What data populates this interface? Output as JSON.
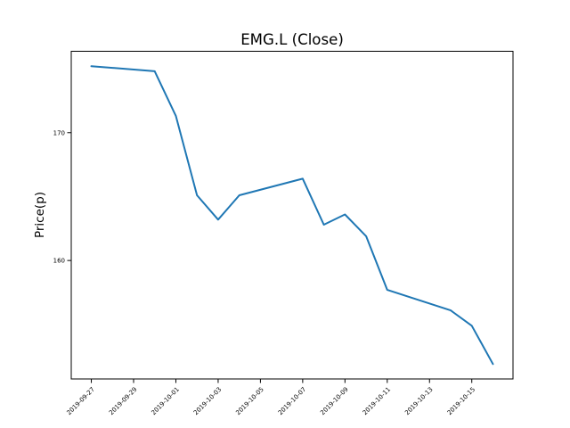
{
  "figure": {
    "background": "#ffffff"
  },
  "chart_data": {
    "type": "line",
    "title": "EMG.L (Close)",
    "xlabel": "",
    "ylabel": "Price(p)",
    "grid": false,
    "legend": "none",
    "line_color": "#1f77b4",
    "axis_color": "#000000",
    "x": [
      "2019-09-27",
      "2019-09-30",
      "2019-10-01",
      "2019-10-02",
      "2019-10-03",
      "2019-10-04",
      "2019-10-07",
      "2019-10-08",
      "2019-10-09",
      "2019-10-10",
      "2019-10-11",
      "2019-10-14",
      "2019-10-15",
      "2019-10-16"
    ],
    "series": [
      {
        "name": "Close",
        "values": [
          175.2,
          174.8,
          171.3,
          165.1,
          163.2,
          165.1,
          166.4,
          162.8,
          163.6,
          161.9,
          157.7,
          156.1,
          154.9,
          151.9
        ]
      }
    ],
    "x_tick_labels": [
      "2019-09-27",
      "2019-09-29",
      "2019-10-01",
      "2019-10-03",
      "2019-10-05",
      "2019-10-07",
      "2019-10-09",
      "2019-10-11",
      "2019-10-13",
      "2019-10-15"
    ],
    "y_ticks": [
      160,
      170
    ],
    "y_tick_labels": [
      "160",
      "170"
    ],
    "ylim": [
      150.7,
      176.4
    ],
    "x_margin_frac": 0.05,
    "y_margin_frac": 0.05
  }
}
